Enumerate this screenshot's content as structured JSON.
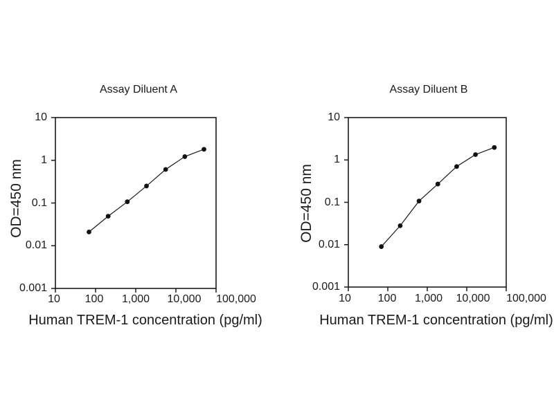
{
  "page": {
    "background": "#ffffff",
    "text_color": "#1a1a1a"
  },
  "chart_data": [
    {
      "type": "line",
      "title": "Assay Diluent A",
      "xlabel": "Human TREM-1 concentration (pg/ml)",
      "ylabel": "OD=450 nm",
      "x_scale": "log",
      "y_scale": "log",
      "xlim": [
        10,
        100000
      ],
      "ylim": [
        0.001,
        10
      ],
      "x_ticks": [
        "10",
        "100",
        "1,000",
        "10,000",
        "100,000"
      ],
      "y_ticks": [
        "10",
        "1",
        "0.1",
        "0.01",
        "0.001"
      ],
      "grid": "off",
      "legend": "none",
      "x": [
        68.6,
        205.8,
        617.3,
        1852,
        5556,
        16667,
        50000
      ],
      "y": [
        0.021,
        0.049,
        0.107,
        0.25,
        0.61,
        1.22,
        1.81
      ],
      "line_color": "#1a1a1a",
      "marker_color": "#111111"
    },
    {
      "type": "line",
      "title": "Assay Diluent B",
      "xlabel": "Human TREM-1 concentration (pg/ml)",
      "ylabel": "OD=450 nm",
      "x_scale": "log",
      "y_scale": "log",
      "xlim": [
        10,
        100000
      ],
      "ylim": [
        0.001,
        10
      ],
      "x_ticks": [
        "10",
        "100",
        "1,000",
        "10,000",
        "100,000"
      ],
      "y_ticks": [
        "10",
        "1",
        "0.1",
        "0.01",
        "0.001"
      ],
      "grid": "off",
      "legend": "none",
      "x": [
        68.6,
        205.8,
        617.3,
        1852,
        5556,
        16667,
        50000
      ],
      "y": [
        0.009,
        0.028,
        0.107,
        0.27,
        0.7,
        1.34,
        1.97
      ],
      "line_color": "#1a1a1a",
      "marker_color": "#111111"
    }
  ]
}
